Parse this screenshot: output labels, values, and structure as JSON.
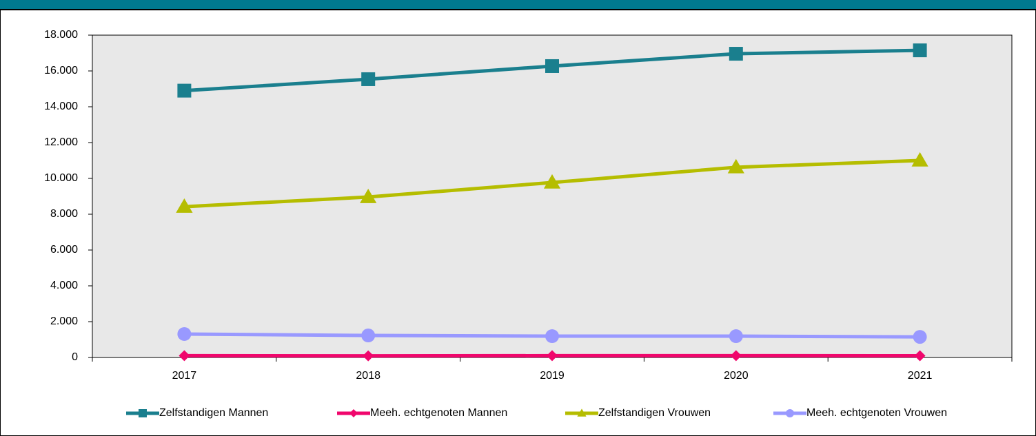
{
  "chart_data": {
    "type": "line",
    "categories": [
      "2017",
      "2018",
      "2019",
      "2020",
      "2021"
    ],
    "series": [
      {
        "name": "Zelfstandigen Mannen",
        "color": "#1a7f8e",
        "marker": "square",
        "values": [
          14900,
          15540,
          16270,
          16960,
          17150
        ]
      },
      {
        "name": "Meeh. echtgenoten Mannen",
        "color": "#f0066c",
        "marker": "diamond",
        "values": [
          100,
          90,
          100,
          100,
          95
        ]
      },
      {
        "name": "Zelfstandigen Vrouwen",
        "color": "#b5bd00",
        "marker": "triangle",
        "values": [
          8420,
          8960,
          9770,
          10620,
          11000
        ]
      },
      {
        "name": "Meeh. echtgenoten Vrouwen",
        "color": "#9999ff",
        "marker": "circle",
        "values": [
          1310,
          1230,
          1190,
          1190,
          1150
        ]
      }
    ],
    "ylim": [
      0,
      18000
    ],
    "yticks": [
      0,
      {
        "value": 2000,
        "label": "2.000"
      },
      {
        "value": 4000,
        "label": "4.000"
      },
      {
        "value": 6000,
        "label": "6.000"
      },
      {
        "value": 8000,
        "label": "8.000"
      },
      {
        "value": 10000,
        "label": "10.000"
      },
      {
        "value": 12000,
        "label": "12.000"
      },
      {
        "value": 14000,
        "label": "14.000"
      },
      {
        "value": 16000,
        "label": "16.000"
      },
      {
        "value": 18000,
        "label": "18.000"
      }
    ],
    "legend": "bottom"
  }
}
